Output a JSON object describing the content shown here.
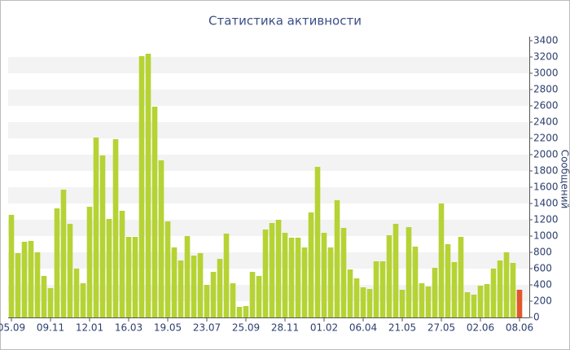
{
  "chart_data": {
    "type": "bar",
    "title": "Статистика активности",
    "y_axis_label": "Сообщений",
    "categories": [
      "05.09",
      null,
      null,
      null,
      null,
      null,
      "09.11",
      null,
      null,
      null,
      null,
      null,
      "12.01",
      null,
      null,
      null,
      null,
      null,
      "16.03",
      null,
      null,
      null,
      null,
      null,
      "19.05",
      null,
      null,
      null,
      null,
      null,
      "23.07",
      null,
      null,
      null,
      null,
      null,
      "25.09",
      null,
      null,
      null,
      null,
      null,
      "28.11",
      null,
      null,
      null,
      null,
      null,
      "01.02",
      null,
      null,
      null,
      null,
      null,
      "06.04",
      null,
      null,
      null,
      null,
      null,
      "21.05",
      null,
      null,
      null,
      null,
      null,
      "27.05",
      null,
      null,
      null,
      null,
      null,
      "02.06",
      null,
      null,
      null,
      null,
      null,
      "08.06"
    ],
    "values": [
      1260,
      790,
      930,
      940,
      800,
      510,
      360,
      1340,
      1570,
      1150,
      600,
      420,
      1360,
      2210,
      1990,
      1210,
      2190,
      1310,
      990,
      990,
      3210,
      3240,
      2590,
      1930,
      1180,
      860,
      700,
      1000,
      760,
      790,
      400,
      560,
      720,
      1030,
      420,
      130,
      140,
      560,
      510,
      1080,
      1160,
      1200,
      1040,
      980,
      980,
      860,
      1290,
      1850,
      1040,
      860,
      1440,
      1100,
      590,
      480,
      370,
      350,
      690,
      690,
      1010,
      1150,
      340,
      1110,
      870,
      420,
      380,
      610,
      1400,
      900,
      680,
      990,
      310,
      280,
      390,
      410,
      600,
      700,
      800,
      670,
      340
    ],
    "color": "#b5d334",
    "last_color": "#e0582c",
    "ylim": [
      0,
      3400
    ],
    "yticks": [
      0,
      200,
      400,
      600,
      800,
      1000,
      1200,
      1400,
      1600,
      1800,
      2000,
      2200,
      2400,
      2600,
      2800,
      3000,
      3200,
      3400
    ],
    "grid": true
  }
}
